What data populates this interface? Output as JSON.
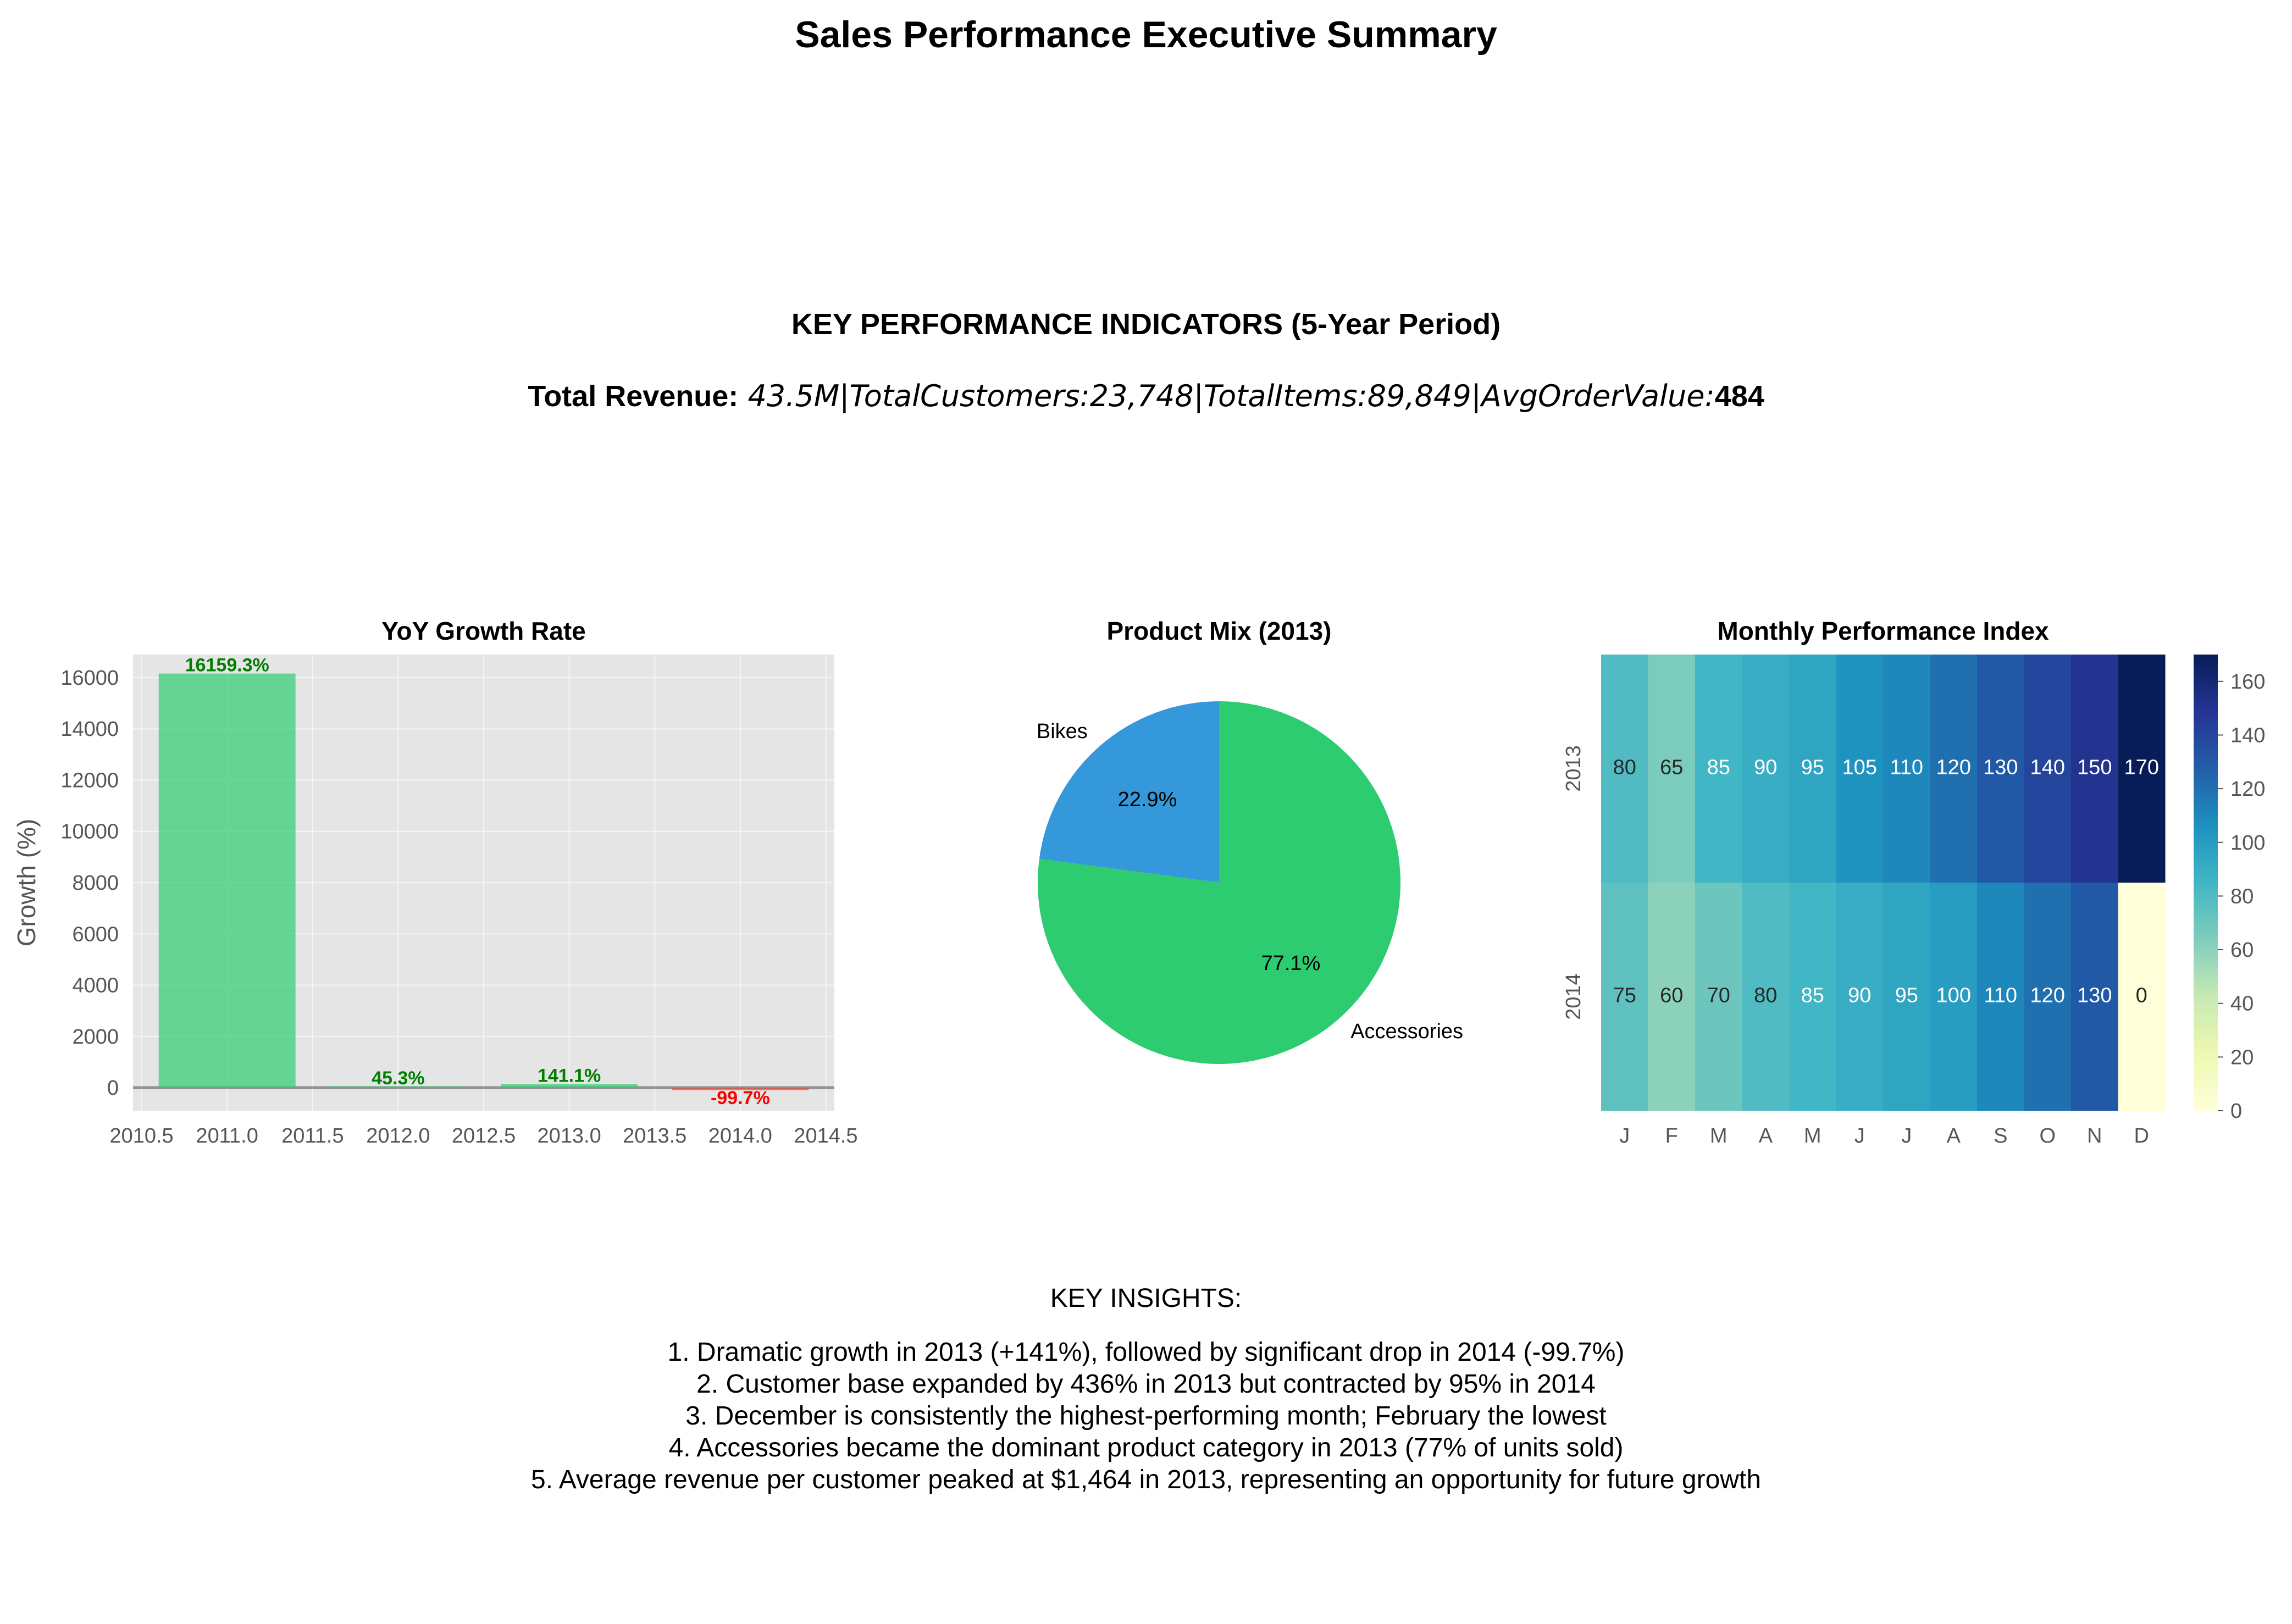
{
  "title": "Sales Performance Executive Summary",
  "kpi": {
    "heading": "KEY PERFORMANCE INDICATORS (5-Year Period)",
    "revenue_label": "Total Revenue:",
    "math_text": "43.5M|TotalCustomers:23,748|TotalItems:89,849|AvgOrderValue:",
    "tail_value": "484"
  },
  "colors": {
    "positive": "#2ecc71",
    "negative": "#e74c3c",
    "positive_label": "#008000",
    "negative_label": "#ff0000",
    "bikes": "#3498db",
    "accessories": "#2ecc71",
    "axes_bg": "#e5e5e5"
  },
  "insights": {
    "heading": "KEY INSIGHTS:",
    "items": [
      "1. Dramatic growth in 2013 (+141%), followed by significant drop in 2014 (-99.7%)",
      "2. Customer base expanded by 436% in 2013 but contracted by 95% in 2014",
      "3. December is consistently the highest-performing month; February the lowest",
      "4. Accessories became the dominant product category in 2013 (77% of units sold)",
      "5. Average revenue per customer peaked at $1,464 in 2013, representing an opportunity for future growth"
    ]
  },
  "chart_data": [
    {
      "type": "bar",
      "title": "YoY Growth Rate",
      "xlabel": "",
      "ylabel": "Growth (%)",
      "x": [
        2011,
        2012,
        2013,
        2014
      ],
      "values": [
        16159.3,
        45.3,
        141.1,
        -99.7
      ],
      "labels": [
        "16159.3%",
        "45.3%",
        "141.1%",
        "-99.7%"
      ],
      "bar_width": 0.8,
      "xlim": [
        2010.45,
        2014.55
      ],
      "ylim": [
        -900,
        16900
      ],
      "xticks": [
        2010.5,
        2011.0,
        2011.5,
        2012.0,
        2012.5,
        2013.0,
        2013.5,
        2014.0,
        2014.5
      ],
      "xtick_labels": [
        "2010.5",
        "2011.0",
        "2011.5",
        "2012.0",
        "2012.5",
        "2013.0",
        "2013.5",
        "2014.0",
        "2014.5"
      ],
      "yticks": [
        0,
        2000,
        4000,
        6000,
        8000,
        10000,
        12000,
        14000,
        16000
      ],
      "ytick_labels": [
        "0",
        "2000",
        "4000",
        "6000",
        "8000",
        "10000",
        "12000",
        "14000",
        "16000"
      ],
      "grid": true
    },
    {
      "type": "pie",
      "title": "Product Mix (2013)",
      "labels": [
        "Bikes",
        "Accessories"
      ],
      "values": [
        22.9,
        77.1
      ],
      "pct_labels": [
        "22.9%",
        "77.1%"
      ],
      "start_angle_deg": 90
    },
    {
      "type": "heatmap",
      "title": "Monthly Performance Index",
      "rows": [
        "2013",
        "2014"
      ],
      "columns": [
        "J",
        "F",
        "M",
        "A",
        "M",
        "J",
        "J",
        "A",
        "S",
        "O",
        "N",
        "D"
      ],
      "values": [
        [
          80,
          65,
          85,
          90,
          95,
          105,
          110,
          120,
          130,
          140,
          150,
          170
        ],
        [
          75,
          60,
          70,
          80,
          85,
          90,
          95,
          100,
          110,
          120,
          130,
          0
        ]
      ],
      "colormap": "YlGnBu",
      "vmin": 0,
      "vmax": 170,
      "colorbar_ticks": [
        0,
        20,
        40,
        60,
        80,
        100,
        120,
        140,
        160
      ]
    }
  ]
}
